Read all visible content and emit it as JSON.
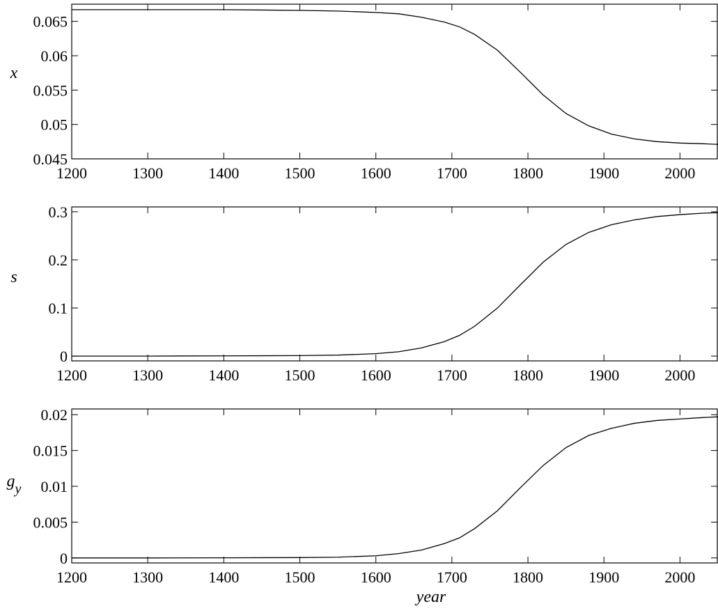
{
  "chart_data": [
    {
      "type": "line",
      "xlabel": "",
      "ylabel": "x",
      "xlim": [
        1200,
        2050
      ],
      "ylim": [
        0.045,
        0.0675
      ],
      "xticks": [
        1200,
        1300,
        1400,
        1500,
        1600,
        1700,
        1800,
        1900,
        2000
      ],
      "yticks": [
        "0.045",
        "0.05",
        "0.055",
        "0.06",
        "0.065"
      ],
      "grid": false,
      "series": [
        {
          "x": [
            1200,
            1300,
            1400,
            1500,
            1550,
            1600,
            1630,
            1660,
            1690,
            1710,
            1730,
            1760,
            1790,
            1820,
            1850,
            1880,
            1910,
            1940,
            1970,
            2000,
            2030,
            2050
          ],
          "values": [
            0.0667,
            0.0667,
            0.0667,
            0.0666,
            0.0665,
            0.0663,
            0.0661,
            0.0656,
            0.0649,
            0.0642,
            0.0631,
            0.0608,
            0.0576,
            0.0543,
            0.0516,
            0.0498,
            0.0486,
            0.0479,
            0.0475,
            0.0473,
            0.0472,
            0.0471
          ]
        }
      ]
    },
    {
      "type": "line",
      "xlabel": "",
      "ylabel": "s",
      "xlim": [
        1200,
        2050
      ],
      "ylim": [
        -0.01,
        0.31
      ],
      "xticks": [
        1200,
        1300,
        1400,
        1500,
        1600,
        1700,
        1800,
        1900,
        2000
      ],
      "yticks": [
        "0",
        "0.1",
        "0.2",
        "0.3"
      ],
      "grid": false,
      "series": [
        {
          "x": [
            1200,
            1300,
            1400,
            1500,
            1550,
            1600,
            1630,
            1660,
            1690,
            1710,
            1730,
            1760,
            1790,
            1820,
            1850,
            1880,
            1910,
            1940,
            1970,
            2000,
            2030,
            2050
          ],
          "values": [
            0,
            0,
            0.0005,
            0.001,
            0.002,
            0.005,
            0.009,
            0.017,
            0.03,
            0.043,
            0.062,
            0.1,
            0.148,
            0.195,
            0.232,
            0.257,
            0.273,
            0.283,
            0.29,
            0.294,
            0.297,
            0.298
          ]
        }
      ]
    },
    {
      "type": "line",
      "xlabel": "year",
      "ylabel": "g_y",
      "xlim": [
        1200,
        2050
      ],
      "ylim": [
        -0.0007,
        0.0208
      ],
      "xticks": [
        1200,
        1300,
        1400,
        1500,
        1600,
        1700,
        1800,
        1900,
        2000
      ],
      "yticks": [
        "0",
        "0.005",
        "0.01",
        "0.015",
        "0.02"
      ],
      "grid": false,
      "series": [
        {
          "x": [
            1200,
            1300,
            1400,
            1500,
            1550,
            1600,
            1630,
            1660,
            1690,
            1710,
            1730,
            1760,
            1790,
            1820,
            1850,
            1880,
            1910,
            1940,
            1970,
            2000,
            2030,
            2050
          ],
          "values": [
            0,
            0,
            2e-05,
            5e-05,
            0.0001,
            0.0003,
            0.0006,
            0.0011,
            0.002,
            0.0028,
            0.0041,
            0.0066,
            0.0098,
            0.0129,
            0.0154,
            0.0171,
            0.0181,
            0.0188,
            0.0192,
            0.0194,
            0.0196,
            0.0197
          ]
        }
      ]
    }
  ]
}
